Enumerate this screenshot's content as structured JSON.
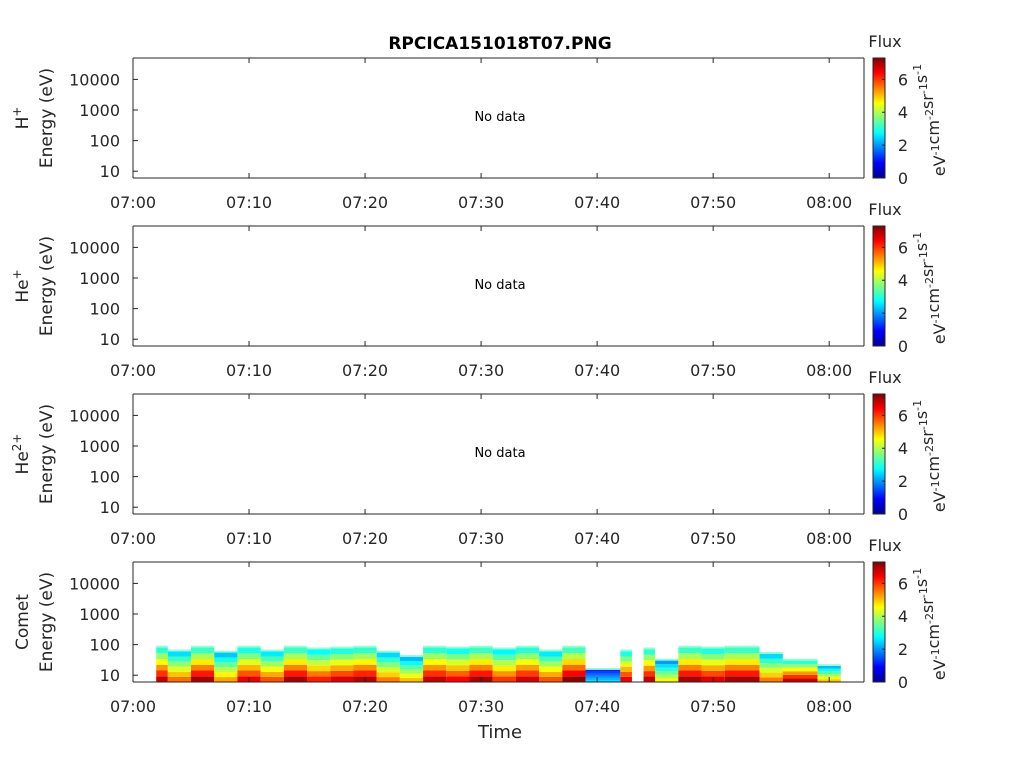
{
  "title": "RPCICA151018T07.PNG",
  "colors": {
    "axis": "#262626",
    "text": "#262626"
  },
  "chart_data": [
    {
      "type": "heatmap",
      "panel_label": "H",
      "panel_label_sup": "+",
      "ylabel": "Energy (eV)",
      "xlabel": "",
      "status_text": "No data",
      "y_scale": "log",
      "y_ticks": [
        "10",
        "100",
        "1000",
        "10000"
      ],
      "ylim": [
        6,
        50000
      ],
      "x_ticks": [
        "07:00",
        "07:10",
        "07:20",
        "07:30",
        "07:40",
        "07:50",
        "08:00"
      ],
      "xlim": [
        "07:00",
        "08:03"
      ],
      "colorbar": {
        "title": "Flux",
        "label": "eV-1cm-2sr-1s-1",
        "ticks": [
          "0",
          "2",
          "4",
          "6"
        ],
        "range": [
          0,
          7.3
        ]
      },
      "data": []
    },
    {
      "type": "heatmap",
      "panel_label": "He",
      "panel_label_sup": "+",
      "ylabel": "Energy (eV)",
      "xlabel": "",
      "status_text": "No data",
      "y_scale": "log",
      "y_ticks": [
        "10",
        "100",
        "1000",
        "10000"
      ],
      "ylim": [
        6,
        50000
      ],
      "x_ticks": [
        "07:00",
        "07:10",
        "07:20",
        "07:30",
        "07:40",
        "07:50",
        "08:00"
      ],
      "xlim": [
        "07:00",
        "08:03"
      ],
      "colorbar": {
        "title": "Flux",
        "label": "eV-1cm-2sr-1s-1",
        "ticks": [
          "0",
          "2",
          "4",
          "6"
        ],
        "range": [
          0,
          7.3
        ]
      },
      "data": []
    },
    {
      "type": "heatmap",
      "panel_label": "He",
      "panel_label_sup": "2+",
      "ylabel": "Energy (eV)",
      "xlabel": "",
      "status_text": "No data",
      "y_scale": "log",
      "y_ticks": [
        "10",
        "100",
        "1000",
        "10000"
      ],
      "ylim": [
        6,
        50000
      ],
      "x_ticks": [
        "07:00",
        "07:10",
        "07:20",
        "07:30",
        "07:40",
        "07:50",
        "08:00"
      ],
      "xlim": [
        "07:00",
        "08:03"
      ],
      "colorbar": {
        "title": "Flux",
        "label": "eV-1cm-2sr-1s-1",
        "ticks": [
          "0",
          "2",
          "4",
          "6"
        ],
        "range": [
          0,
          7.3
        ]
      },
      "data": []
    },
    {
      "type": "heatmap",
      "panel_label": "Comet",
      "panel_label_sup": "",
      "ylabel": "Energy (eV)",
      "xlabel": "Time",
      "status_text": "",
      "y_scale": "log",
      "y_ticks": [
        "10",
        "100",
        "1000",
        "10000"
      ],
      "ylim": [
        6,
        50000
      ],
      "x_ticks": [
        "07:00",
        "07:10",
        "07:20",
        "07:30",
        "07:40",
        "07:50",
        "08:00"
      ],
      "xlim": [
        "07:00",
        "08:03"
      ],
      "colorbar": {
        "title": "Flux",
        "label": "eV-1cm-2sr-1s-1",
        "ticks": [
          "0",
          "2",
          "4",
          "6"
        ],
        "range": [
          0,
          7.3
        ]
      },
      "data": [
        {
          "t_start": "07:02",
          "t_end": "07:03",
          "e_max": 80,
          "peak_flux": 6.8
        },
        {
          "t_start": "07:03",
          "t_end": "07:05",
          "e_max": 60,
          "peak_flux": 5.6
        },
        {
          "t_start": "07:05",
          "t_end": "07:07",
          "e_max": 80,
          "peak_flux": 7.0
        },
        {
          "t_start": "07:07",
          "t_end": "07:09",
          "e_max": 55,
          "peak_flux": 5.2
        },
        {
          "t_start": "07:09",
          "t_end": "07:11",
          "e_max": 80,
          "peak_flux": 6.5
        },
        {
          "t_start": "07:11",
          "t_end": "07:13",
          "e_max": 60,
          "peak_flux": 5.8
        },
        {
          "t_start": "07:13",
          "t_end": "07:15",
          "e_max": 80,
          "peak_flux": 7.0
        },
        {
          "t_start": "07:15",
          "t_end": "07:17",
          "e_max": 70,
          "peak_flux": 6.2
        },
        {
          "t_start": "07:17",
          "t_end": "07:19",
          "e_max": 75,
          "peak_flux": 6.6
        },
        {
          "t_start": "07:19",
          "t_end": "07:21",
          "e_max": 80,
          "peak_flux": 6.9
        },
        {
          "t_start": "07:21",
          "t_end": "07:23",
          "e_max": 55,
          "peak_flux": 5.5
        },
        {
          "t_start": "07:23",
          "t_end": "07:25",
          "e_max": 40,
          "peak_flux": 5.0
        },
        {
          "t_start": "07:25",
          "t_end": "07:27",
          "e_max": 80,
          "peak_flux": 6.8
        },
        {
          "t_start": "07:27",
          "t_end": "07:29",
          "e_max": 75,
          "peak_flux": 6.4
        },
        {
          "t_start": "07:29",
          "t_end": "07:31",
          "e_max": 80,
          "peak_flux": 7.0
        },
        {
          "t_start": "07:31",
          "t_end": "07:33",
          "e_max": 70,
          "peak_flux": 6.0
        },
        {
          "t_start": "07:33",
          "t_end": "07:35",
          "e_max": 80,
          "peak_flux": 6.7
        },
        {
          "t_start": "07:35",
          "t_end": "07:37",
          "e_max": 60,
          "peak_flux": 5.8
        },
        {
          "t_start": "07:37",
          "t_end": "07:39",
          "e_max": 80,
          "peak_flux": 7.2
        },
        {
          "t_start": "07:39",
          "t_end": "07:42",
          "e_max": 15,
          "peak_flux": 2.5
        },
        {
          "t_start": "07:42",
          "t_end": "07:43",
          "e_max": 60,
          "peak_flux": 6.5
        },
        {
          "t_start": "07:44",
          "t_end": "07:45",
          "e_max": 70,
          "peak_flux": 6.8
        },
        {
          "t_start": "07:45",
          "t_end": "07:47",
          "e_max": 30,
          "peak_flux": 4.5
        },
        {
          "t_start": "07:47",
          "t_end": "07:49",
          "e_max": 80,
          "peak_flux": 7.0
        },
        {
          "t_start": "07:49",
          "t_end": "07:51",
          "e_max": 75,
          "peak_flux": 6.6
        },
        {
          "t_start": "07:51",
          "t_end": "07:54",
          "e_max": 80,
          "peak_flux": 7.0
        },
        {
          "t_start": "07:54",
          "t_end": "07:56",
          "e_max": 50,
          "peak_flux": 5.5
        },
        {
          "t_start": "07:56",
          "t_end": "07:59",
          "e_max": 30,
          "peak_flux": 6.8
        },
        {
          "t_start": "07:59",
          "t_end": "08:01",
          "e_max": 20,
          "peak_flux": 5.0
        }
      ]
    }
  ]
}
